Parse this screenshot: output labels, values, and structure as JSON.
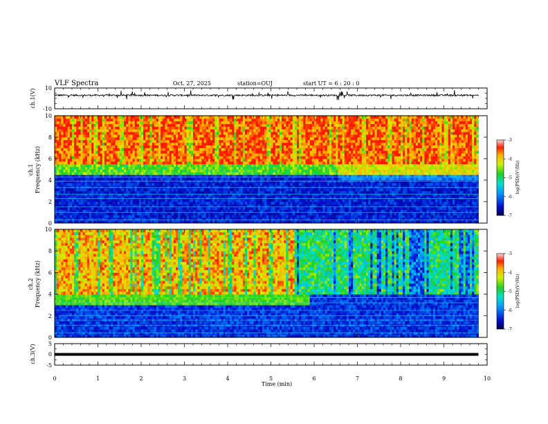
{
  "header": {
    "title": "VLF Spectra",
    "date": "Oct. 27, 2025",
    "station": "station=OUJ",
    "start_ut": "start  UT =  6 : 20 : 0"
  },
  "colors": {
    "spectrogram_scale": [
      "#0a0a78",
      "#0030e0",
      "#00a0ff",
      "#00e0c0",
      "#40e040",
      "#c0f000",
      "#ffe000",
      "#ff8000",
      "#e00000"
    ],
    "trace": "#000000"
  },
  "chart_data": [
    {
      "type": "line",
      "panel": "ch1_waveform",
      "ylabel": "ch.1(V)",
      "ylim": [
        -10,
        10
      ],
      "yticks": [
        "10",
        "-10"
      ],
      "x": [
        0,
        1,
        2,
        3,
        4,
        5,
        6,
        7,
        8,
        9,
        9.8
      ],
      "y": [
        3,
        3,
        3,
        3,
        3,
        3,
        3,
        3,
        3,
        3,
        3
      ],
      "xlim": [
        0,
        10
      ]
    },
    {
      "type": "heatmap",
      "panel": "ch1_spectrogram",
      "ylabel": "ch.1\nFrequency (kHz)",
      "ylabel_line1": "ch.1",
      "ylabel_line2": "Frequency (kHz)",
      "xlim": [
        0,
        10
      ],
      "ylim": [
        0,
        10
      ],
      "data_xmax": 9.8,
      "yticks": [
        "0",
        "2",
        "4",
        "6",
        "8",
        "10"
      ],
      "colorbar_label": "log(PSD)(V²/Hz)",
      "colorbar_ticks": [
        "-3",
        "-4",
        "-5",
        "-6",
        "-7"
      ],
      "colorbar_range": [
        -7,
        -3
      ]
    },
    {
      "type": "heatmap",
      "panel": "ch2_spectrogram",
      "ylabel": "ch.2\nFrequency (kHz)",
      "ylabel_line1": "ch.2",
      "ylabel_line2": "Frequency (kHz)",
      "xlim": [
        0,
        10
      ],
      "ylim": [
        0,
        10
      ],
      "data_xmax": 9.8,
      "yticks": [
        "0",
        "2",
        "4",
        "6",
        "8",
        "10"
      ],
      "colorbar_label": "log(PSD)(V²/Hz)",
      "colorbar_ticks": [
        "-3",
        "-4",
        "-5",
        "-6",
        "-7"
      ],
      "colorbar_range": [
        -7,
        -3
      ]
    },
    {
      "type": "line",
      "panel": "ch3_waveform",
      "ylabel": "ch.3(V)",
      "ylim": [
        -5,
        5
      ],
      "yticks": [
        "5",
        "0",
        "-5"
      ],
      "x": [
        0,
        9.8
      ],
      "y": [
        0,
        0
      ],
      "xlim": [
        0,
        10
      ]
    }
  ],
  "xaxis": {
    "label": "Time  (min)",
    "ticks": [
      "0",
      "1",
      "2",
      "3",
      "4",
      "5",
      "6",
      "7",
      "8",
      "9",
      "10"
    ]
  }
}
